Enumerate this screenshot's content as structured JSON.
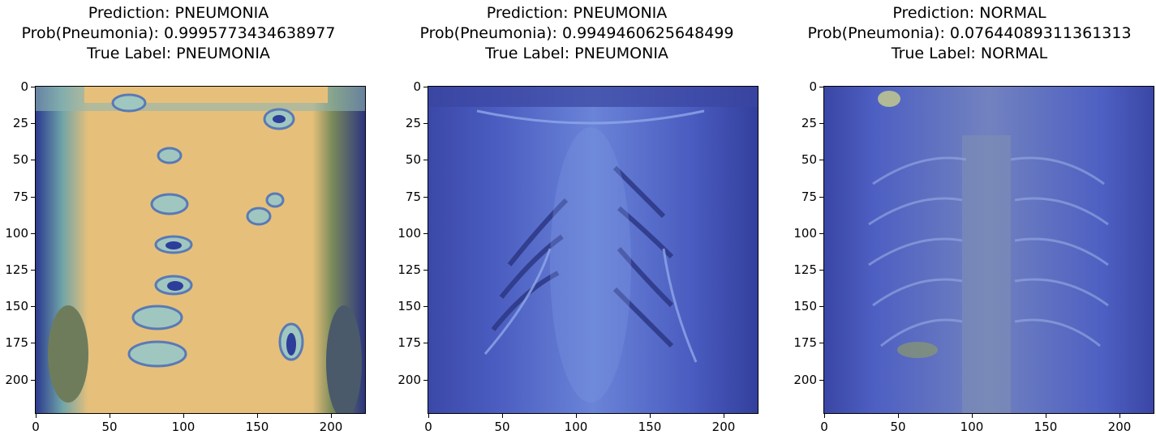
{
  "figure": {
    "panels": [
      {
        "prediction": "Prediction: PNEUMONIA",
        "probability": "Prob(Pneumonia): 0.9995773434638977",
        "true_label": "True Label: PNEUMONIA",
        "colormap": "yellow-heat-overlay"
      },
      {
        "prediction": "Prediction: PNEUMONIA",
        "probability": "Prob(Pneumonia): 0.9949460625648499",
        "true_label": "True Label: PNEUMONIA",
        "colormap": "blue-overlay"
      },
      {
        "prediction": "Prediction: NORMAL",
        "probability": "Prob(Pneumonia): 0.07644089311361313",
        "true_label": "True Label: NORMAL",
        "colormap": "blue-overlay"
      }
    ],
    "y_ticks": [
      "0",
      "25",
      "50",
      "75",
      "100",
      "125",
      "150",
      "175",
      "200"
    ],
    "x_ticks": [
      "0",
      "50",
      "100",
      "150",
      "200"
    ]
  }
}
